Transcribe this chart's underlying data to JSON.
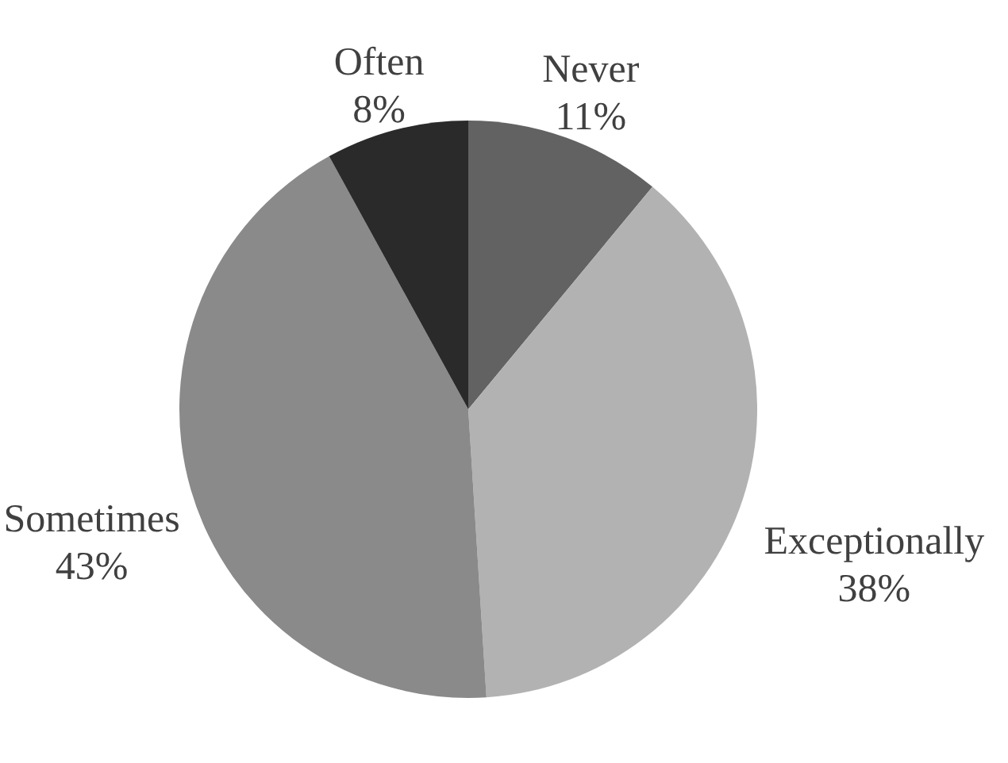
{
  "chart_data": {
    "type": "pie",
    "categories": [
      "Never",
      "Exceptionally",
      "Sometimes",
      "Often"
    ],
    "values": [
      11,
      38,
      43,
      8
    ],
    "value_labels": [
      "11%",
      "38%",
      "43%",
      "8%"
    ],
    "colors": [
      "#626262",
      "#b2b2b2",
      "#8a8a8a",
      "#2a2a2a"
    ]
  }
}
